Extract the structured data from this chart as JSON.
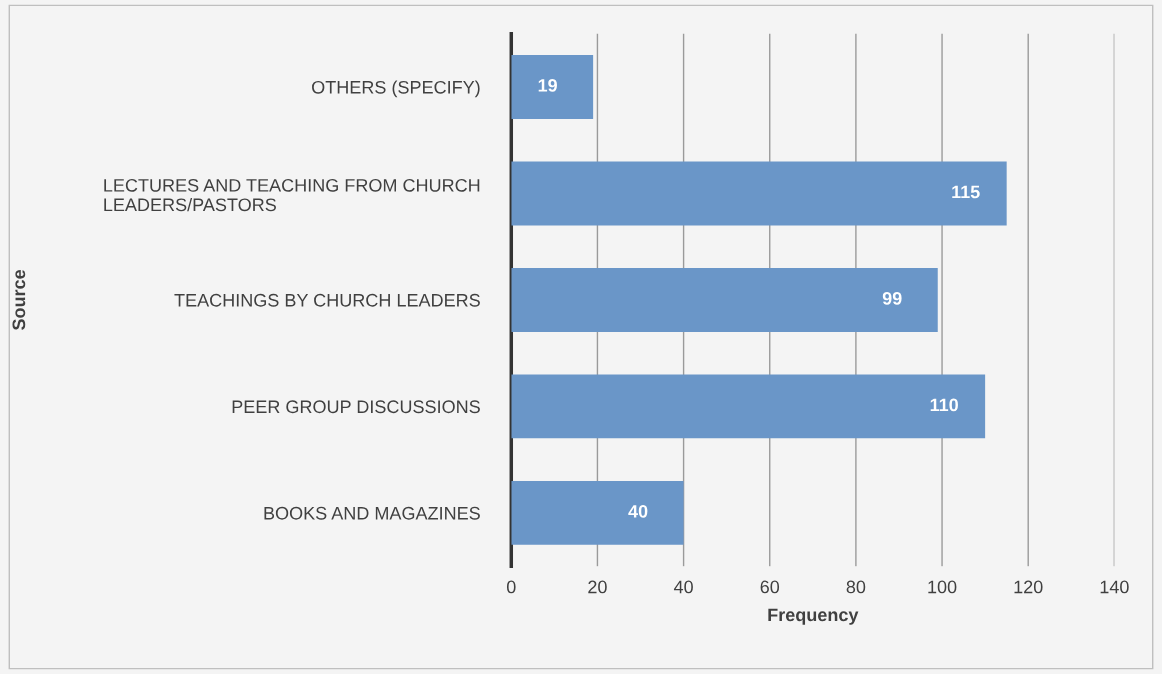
{
  "chart_data": {
    "type": "bar",
    "orientation": "horizontal",
    "xlabel": "Frequency",
    "ylabel": "Source",
    "categories": [
      "OTHERS (SPECIFY)",
      "LECTURES AND TEACHING FROM CHURCH\nLEADERS/PASTORS",
      "TEACHINGS BY CHURCH LEADERS",
      "PEER GROUP DISCUSSIONS",
      "BOOKS AND MAGAZINES"
    ],
    "values": [
      19,
      115,
      99,
      110,
      40
    ],
    "color": "#6a96c8",
    "xlim": [
      0,
      140
    ],
    "xticks": [
      0,
      20,
      40,
      60,
      80,
      100,
      120,
      140
    ],
    "grid": "x",
    "data_labels": true
  }
}
